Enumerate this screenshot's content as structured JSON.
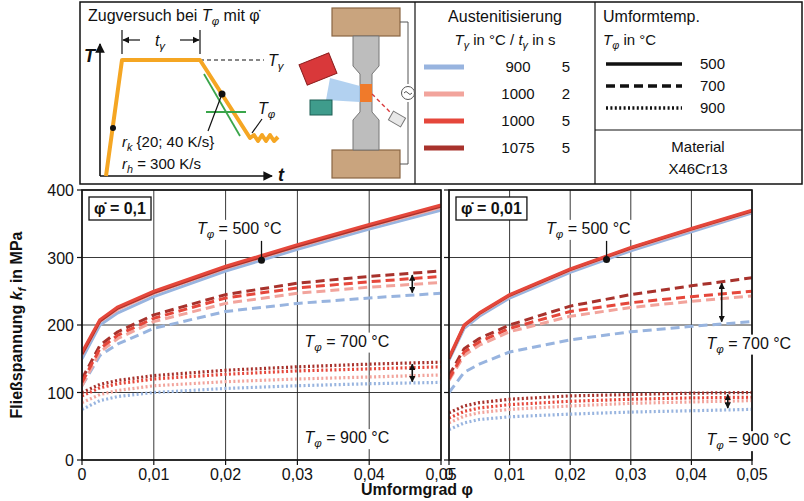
{
  "header": {
    "schematic": {
      "title": "Zugversuch bei Tφ mit φ̇",
      "axis_y": "T",
      "axis_x": "t",
      "hold_time": "tγ",
      "aust_temp": "Tγ",
      "form_temp": "Tφ",
      "cooling_rate": "rk {20; 40 K/s}",
      "heating_rate": "rh = 300 K/s"
    },
    "austenitization": {
      "title": "Austenitisierung",
      "subtitle": "Tγ in °C / tγ in s",
      "entries": [
        {
          "temperature": 900,
          "time": 5,
          "color": "#98b4df"
        },
        {
          "temperature": 1000,
          "time": 2,
          "color": "#f2a49c"
        },
        {
          "temperature": 1000,
          "time": 5,
          "color": "#e5473b"
        },
        {
          "temperature": 1075,
          "time": 5,
          "color": "#a8322c"
        }
      ]
    },
    "forming_temperature": {
      "title": "Umformtemp.",
      "subtitle": "Tφ in °C",
      "entries": [
        {
          "value": 500,
          "line_style": "solid"
        },
        {
          "value": 700,
          "line_style": "dashed"
        },
        {
          "value": 900,
          "line_style": "dotted"
        }
      ]
    },
    "material": {
      "title": "Material",
      "value": "X46Cr13"
    }
  },
  "axis_titles": {
    "x": "Umformgrad φ",
    "y": "Fließspannung kf in MPa"
  },
  "chart_data": [
    {
      "type": "line",
      "title": "φ̇ = 0,1",
      "x": [
        0,
        0.0025,
        0.005,
        0.01,
        0.02,
        0.03,
        0.04,
        0.05
      ],
      "xlim": [
        0,
        0.05
      ],
      "xticks": [
        0,
        {
          "value": 0.01,
          "label": "0,01"
        },
        {
          "value": 0.02,
          "label": "0,02"
        },
        {
          "value": 0.03,
          "label": "0,03"
        },
        {
          "value": 0.04,
          "label": "0,04"
        },
        {
          "value": 0.05,
          "label": "0,05"
        }
      ],
      "ylim": [
        0,
        400
      ],
      "yticks": [
        0,
        100,
        200,
        300,
        400
      ],
      "grid": true,
      "series": [
        {
          "color": "#98b4df",
          "line_style": "solid",
          "values": [
            150,
            200,
            218,
            242,
            280,
            312,
            342,
            370
          ]
        },
        {
          "color": "#f2a49c",
          "line_style": "solid",
          "values": [
            156,
            205,
            223,
            247,
            284,
            316,
            346,
            374
          ]
        },
        {
          "color": "#a8322c",
          "line_style": "solid",
          "values": [
            157,
            206,
            225,
            248,
            285,
            317,
            347,
            376
          ]
        },
        {
          "color": "#e5473b",
          "line_style": "solid",
          "values": [
            160,
            208,
            227,
            250,
            287,
            319,
            349,
            378
          ]
        },
        {
          "color": "#98b4df",
          "line_style": "dashed",
          "values": [
            110,
            155,
            172,
            195,
            220,
            232,
            240,
            247
          ]
        },
        {
          "color": "#f2a49c",
          "line_style": "dashed",
          "values": [
            110,
            160,
            180,
            205,
            232,
            247,
            256,
            263
          ]
        },
        {
          "color": "#a8322c",
          "line_style": "dashed",
          "values": [
            120,
            170,
            190,
            215,
            245,
            262,
            272,
            280
          ]
        },
        {
          "color": "#e5473b",
          "line_style": "dashed",
          "values": [
            115,
            165,
            185,
            210,
            240,
            255,
            264,
            272
          ]
        },
        {
          "color": "#98b4df",
          "line_style": "dotted",
          "values": [
            75,
            88,
            94,
            100,
            106,
            110,
            113,
            115
          ]
        },
        {
          "color": "#f2a49c",
          "line_style": "dotted",
          "values": [
            85,
            97,
            103,
            110,
            116,
            120,
            123,
            126
          ]
        },
        {
          "color": "#a8322c",
          "line_style": "dotted",
          "values": [
            100,
            112,
            118,
            125,
            133,
            138,
            142,
            145
          ]
        },
        {
          "color": "#e5473b",
          "line_style": "dotted",
          "values": [
            95,
            107,
            113,
            120,
            127,
            132,
            135,
            138
          ]
        }
      ],
      "annotations": [
        {
          "text": "Tφ = 500 °C",
          "x": 0.016,
          "y": 335,
          "arrow_to": {
            "x": 0.025,
            "y": 296
          }
        },
        {
          "text": "Tφ = 700 °C",
          "x": 0.031,
          "y": 168
        },
        {
          "text": "Tφ = 900 °C",
          "x": 0.031,
          "y": 25
        }
      ],
      "spread_arrows": [
        {
          "x": 0.046,
          "from": 248,
          "to": 274
        },
        {
          "x": 0.046,
          "from": 116,
          "to": 142
        }
      ]
    },
    {
      "type": "line",
      "title": "φ̇ = 0,01",
      "x": [
        0,
        0.0025,
        0.005,
        0.01,
        0.02,
        0.03,
        0.04,
        0.05
      ],
      "xlim": [
        0,
        0.05
      ],
      "xticks": [
        0,
        {
          "value": 0.01,
          "label": "0,01"
        },
        {
          "value": 0.02,
          "label": "0,02"
        },
        {
          "value": 0.03,
          "label": "0,03"
        },
        {
          "value": 0.04,
          "label": "0,04"
        },
        {
          "value": 0.05,
          "label": "0,05"
        }
      ],
      "ylim": [
        0,
        400
      ],
      "yticks": [
        0,
        100,
        200,
        300,
        400
      ],
      "grid": true,
      "tick_labels": "x",
      "series": [
        {
          "color": "#98b4df",
          "line_style": "solid",
          "values": [
            148,
            195,
            213,
            240,
            278,
            310,
            338,
            366
          ]
        },
        {
          "color": "#f2a49c",
          "line_style": "solid",
          "values": [
            150,
            198,
            216,
            243,
            281,
            313,
            341,
            368
          ]
        },
        {
          "color": "#a8322c",
          "line_style": "solid",
          "values": [
            150,
            199,
            217,
            244,
            282,
            314,
            342,
            369
          ]
        },
        {
          "color": "#e5473b",
          "line_style": "solid",
          "values": [
            152,
            200,
            218,
            245,
            283,
            315,
            343,
            370
          ]
        },
        {
          "color": "#98b4df",
          "line_style": "dashed",
          "values": [
            100,
            130,
            142,
            160,
            178,
            190,
            198,
            205
          ]
        },
        {
          "color": "#f2a49c",
          "line_style": "dashed",
          "values": [
            118,
            155,
            170,
            190,
            213,
            226,
            235,
            243
          ]
        },
        {
          "color": "#a8322c",
          "line_style": "dashed",
          "values": [
            125,
            165,
            180,
            200,
            228,
            245,
            258,
            270
          ]
        },
        {
          "color": "#e5473b",
          "line_style": "dashed",
          "values": [
            120,
            160,
            175,
            195,
            220,
            233,
            242,
            250
          ]
        },
        {
          "color": "#98b4df",
          "line_style": "dotted",
          "values": [
            45,
            55,
            60,
            64,
            68,
            71,
            73,
            75
          ]
        },
        {
          "color": "#f2a49c",
          "line_style": "dotted",
          "values": [
            55,
            65,
            70,
            75,
            80,
            84,
            86,
            88
          ]
        },
        {
          "color": "#a8322c",
          "line_style": "dotted",
          "values": [
            70,
            80,
            85,
            90,
            95,
            97,
            99,
            100
          ]
        },
        {
          "color": "#e5473b",
          "line_style": "dotted",
          "values": [
            62,
            72,
            77,
            82,
            87,
            90,
            92,
            93
          ]
        }
      ],
      "annotations": [
        {
          "text": "Tφ = 500 °C",
          "x": 0.016,
          "y": 335,
          "arrow_to": {
            "x": 0.026,
            "y": 297
          }
        },
        {
          "text": "Tφ = 700 °C",
          "x": 0.0425,
          "y": 165
        },
        {
          "text": "Tφ = 900 °C",
          "x": 0.0425,
          "y": 22
        }
      ],
      "spread_arrows": [
        {
          "x": 0.045,
          "from": 205,
          "to": 262
        },
        {
          "x": 0.046,
          "from": 77,
          "to": 97
        }
      ]
    }
  ]
}
